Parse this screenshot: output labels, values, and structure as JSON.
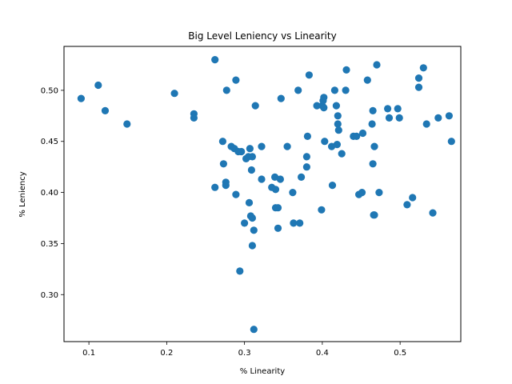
{
  "chart_data": {
    "type": "scatter",
    "title": "Big Level Leniency vs Linearity",
    "xlabel": "% Linearity",
    "ylabel": "% Leniency",
    "xlim": [
      0.068,
      0.578
    ],
    "ylim": [
      0.254,
      0.543
    ],
    "xticks": [
      0.1,
      0.2,
      0.3,
      0.4,
      0.5
    ],
    "xtick_labels": [
      "0.1",
      "0.2",
      "0.3",
      "0.4",
      "0.5"
    ],
    "yticks": [
      0.3,
      0.35,
      0.4,
      0.45,
      0.5
    ],
    "ytick_labels": [
      "0.30",
      "0.35",
      "0.40",
      "0.45",
      "0.50"
    ],
    "grid": false,
    "color": "#1f77b4",
    "points": [
      [
        0.09,
        0.492
      ],
      [
        0.112,
        0.505
      ],
      [
        0.121,
        0.48
      ],
      [
        0.149,
        0.467
      ],
      [
        0.21,
        0.497
      ],
      [
        0.235,
        0.477
      ],
      [
        0.235,
        0.473
      ],
      [
        0.262,
        0.53
      ],
      [
        0.262,
        0.405
      ],
      [
        0.272,
        0.45
      ],
      [
        0.273,
        0.428
      ],
      [
        0.276,
        0.41
      ],
      [
        0.276,
        0.407
      ],
      [
        0.277,
        0.5
      ],
      [
        0.283,
        0.445
      ],
      [
        0.287,
        0.443
      ],
      [
        0.289,
        0.398
      ],
      [
        0.289,
        0.51
      ],
      [
        0.292,
        0.44
      ],
      [
        0.294,
        0.323
      ],
      [
        0.296,
        0.44
      ],
      [
        0.3,
        0.37
      ],
      [
        0.302,
        0.433
      ],
      [
        0.305,
        0.435
      ],
      [
        0.306,
        0.39
      ],
      [
        0.307,
        0.443
      ],
      [
        0.308,
        0.377
      ],
      [
        0.309,
        0.422
      ],
      [
        0.31,
        0.375
      ],
      [
        0.31,
        0.348
      ],
      [
        0.31,
        0.435
      ],
      [
        0.312,
        0.363
      ],
      [
        0.312,
        0.266
      ],
      [
        0.314,
        0.485
      ],
      [
        0.322,
        0.445
      ],
      [
        0.322,
        0.413
      ],
      [
        0.335,
        0.405
      ],
      [
        0.339,
        0.415
      ],
      [
        0.34,
        0.403
      ],
      [
        0.34,
        0.385
      ],
      [
        0.343,
        0.385
      ],
      [
        0.343,
        0.365
      ],
      [
        0.346,
        0.413
      ],
      [
        0.347,
        0.492
      ],
      [
        0.355,
        0.445
      ],
      [
        0.362,
        0.4
      ],
      [
        0.363,
        0.37
      ],
      [
        0.369,
        0.5
      ],
      [
        0.371,
        0.37
      ],
      [
        0.373,
        0.415
      ],
      [
        0.38,
        0.425
      ],
      [
        0.38,
        0.435
      ],
      [
        0.381,
        0.455
      ],
      [
        0.383,
        0.515
      ],
      [
        0.393,
        0.485
      ],
      [
        0.399,
        0.383
      ],
      [
        0.4,
        0.485
      ],
      [
        0.401,
        0.49
      ],
      [
        0.402,
        0.493
      ],
      [
        0.402,
        0.483
      ],
      [
        0.403,
        0.45
      ],
      [
        0.412,
        0.445
      ],
      [
        0.413,
        0.407
      ],
      [
        0.416,
        0.5
      ],
      [
        0.418,
        0.485
      ],
      [
        0.419,
        0.447
      ],
      [
        0.42,
        0.467
      ],
      [
        0.42,
        0.475
      ],
      [
        0.421,
        0.461
      ],
      [
        0.425,
        0.438
      ],
      [
        0.43,
        0.5
      ],
      [
        0.431,
        0.52
      ],
      [
        0.44,
        0.455
      ],
      [
        0.444,
        0.455
      ],
      [
        0.447,
        0.398
      ],
      [
        0.451,
        0.4
      ],
      [
        0.452,
        0.458
      ],
      [
        0.458,
        0.51
      ],
      [
        0.464,
        0.467
      ],
      [
        0.465,
        0.48
      ],
      [
        0.465,
        0.428
      ],
      [
        0.466,
        0.378
      ],
      [
        0.467,
        0.378
      ],
      [
        0.467,
        0.445
      ],
      [
        0.47,
        0.525
      ],
      [
        0.473,
        0.4
      ],
      [
        0.484,
        0.482
      ],
      [
        0.486,
        0.473
      ],
      [
        0.497,
        0.482
      ],
      [
        0.499,
        0.473
      ],
      [
        0.509,
        0.388
      ],
      [
        0.516,
        0.395
      ],
      [
        0.524,
        0.512
      ],
      [
        0.524,
        0.503
      ],
      [
        0.53,
        0.522
      ],
      [
        0.534,
        0.467
      ],
      [
        0.542,
        0.38
      ],
      [
        0.549,
        0.473
      ],
      [
        0.563,
        0.475
      ],
      [
        0.566,
        0.45
      ]
    ]
  }
}
